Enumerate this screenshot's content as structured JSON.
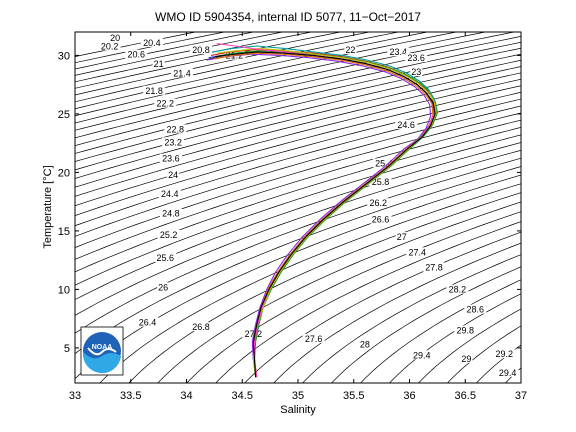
{
  "chart_data": {
    "type": "line",
    "title": "WMO ID 5904354, internal ID 5077, 11−Oct−2017",
    "xlabel": "Salinity",
    "ylabel": "Temperature [°C]",
    "xlim": [
      33,
      37
    ],
    "ylim": [
      2,
      32
    ],
    "xticks": [
      "33",
      "33.5",
      "34",
      "34.5",
      "35",
      "35.5",
      "36",
      "36.5",
      "37"
    ],
    "yticks": [
      "5",
      "10",
      "15",
      "20",
      "25",
      "30"
    ],
    "grid": false,
    "logo_text": "NOAA",
    "density_contours": {
      "start": 20,
      "end": 29.4,
      "step": 0.2,
      "color": "#000000"
    },
    "contour_labels": [
      {
        "text": "20",
        "x": 33.36,
        "y": 31.3
      },
      {
        "text": "20.2",
        "x": 33.31,
        "y": 30.6
      },
      {
        "text": "20.4",
        "x": 33.69,
        "y": 30.9
      },
      {
        "text": "20.6",
        "x": 33.55,
        "y": 29.9
      },
      {
        "text": "20.8",
        "x": 34.13,
        "y": 30.3
      },
      {
        "text": "21",
        "x": 33.75,
        "y": 29.1
      },
      {
        "text": "21.2",
        "x": 34.43,
        "y": 29.8
      },
      {
        "text": "21.4",
        "x": 33.96,
        "y": 28.3
      },
      {
        "text": "21.8",
        "x": 33.71,
        "y": 26.8
      },
      {
        "text": "22.2",
        "x": 33.81,
        "y": 25.7
      },
      {
        "text": "22.8",
        "x": 33.9,
        "y": 23.5
      },
      {
        "text": "23.2",
        "x": 33.88,
        "y": 22.4
      },
      {
        "text": "23.6",
        "x": 33.86,
        "y": 21.0
      },
      {
        "text": "24",
        "x": 33.88,
        "y": 19.6
      },
      {
        "text": "24.4",
        "x": 33.85,
        "y": 18.0
      },
      {
        "text": "24.8",
        "x": 33.86,
        "y": 16.3
      },
      {
        "text": "25.2",
        "x": 33.84,
        "y": 14.5
      },
      {
        "text": "25.6",
        "x": 33.81,
        "y": 12.5
      },
      {
        "text": "26",
        "x": 33.79,
        "y": 10.0
      },
      {
        "text": "26.4",
        "x": 33.65,
        "y": 7.0
      },
      {
        "text": "26.8",
        "x": 34.13,
        "y": 6.6
      },
      {
        "text": "27.2",
        "x": 34.6,
        "y": 6.0
      },
      {
        "text": "27.6",
        "x": 35.14,
        "y": 5.6
      },
      {
        "text": "28",
        "x": 35.6,
        "y": 5.1
      },
      {
        "text": "29.4",
        "x": 36.11,
        "y": 4.2
      },
      {
        "text": "29",
        "x": 36.51,
        "y": 3.9
      },
      {
        "text": "29.2",
        "x": 36.85,
        "y": 4.3
      },
      {
        "text": "29.4",
        "x": 36.88,
        "y": 2.7
      },
      {
        "text": "29.8",
        "x": 36.5,
        "y": 6.3
      },
      {
        "text": "28.6",
        "x": 36.59,
        "y": 8.1
      },
      {
        "text": "28.2",
        "x": 36.43,
        "y": 9.8
      },
      {
        "text": "27.8",
        "x": 36.22,
        "y": 11.7
      },
      {
        "text": "27.4",
        "x": 36.07,
        "y": 13.0
      },
      {
        "text": "27",
        "x": 35.93,
        "y": 14.3
      },
      {
        "text": "26.6",
        "x": 35.74,
        "y": 15.8
      },
      {
        "text": "26.2",
        "x": 35.72,
        "y": 17.2
      },
      {
        "text": "25.8",
        "x": 35.74,
        "y": 19.0
      },
      {
        "text": "25.4",
        "x": 35.77,
        "y": 20.6
      },
      {
        "text": "24.6",
        "x": 35.97,
        "y": 23.9
      },
      {
        "text": "23.4",
        "x": 35.9,
        "y": 30.1
      },
      {
        "text": "23.6",
        "x": 36.06,
        "y": 29.6
      },
      {
        "text": "23",
        "x": 36.06,
        "y": 28.4
      },
      {
        "text": "22",
        "x": 35.47,
        "y": 30.3
      }
    ],
    "series": [
      {
        "color": "#1f3fbf",
        "x": [
          34.62,
          34.6,
          34.6,
          34.63,
          34.67,
          34.73,
          34.82,
          34.93,
          35.06,
          35.22,
          35.4,
          35.6,
          35.8,
          35.97,
          36.1,
          36.18,
          36.22,
          36.2,
          36.15,
          36.07,
          35.95,
          35.8,
          35.6,
          35.38,
          35.12,
          34.85,
          34.6,
          34.38,
          34.2
        ],
        "y": [
          2.5,
          4,
          5.5,
          7,
          8.5,
          10,
          11.5,
          13,
          14.5,
          16,
          17.5,
          19,
          20.5,
          22,
          23,
          24,
          25,
          26,
          26.8,
          27.5,
          28.2,
          28.8,
          29.3,
          29.7,
          30,
          30.2,
          30.3,
          30.1,
          29.8
        ]
      },
      {
        "color": "#d62020",
        "x": [
          34.63,
          34.61,
          34.61,
          34.64,
          34.68,
          34.74,
          34.83,
          34.94,
          35.07,
          35.23,
          35.41,
          35.61,
          35.81,
          35.98,
          36.11,
          36.19,
          36.23,
          36.21,
          36.16,
          36.08,
          35.96,
          35.81,
          35.61,
          35.39,
          35.13,
          34.86,
          34.61,
          34.39,
          34.22
        ],
        "y": [
          2.5,
          4,
          5.5,
          7,
          8.5,
          10,
          11.5,
          13,
          14.5,
          16,
          17.5,
          19,
          20.5,
          22,
          23.2,
          24.2,
          25.2,
          26.2,
          27,
          27.7,
          28.4,
          29,
          29.5,
          29.9,
          30.2,
          30.4,
          30.5,
          30.3,
          30
        ]
      },
      {
        "color": "#1a9a1a",
        "x": [
          34.62,
          34.61,
          34.62,
          34.65,
          34.69,
          34.76,
          34.85,
          34.96,
          35.09,
          35.25,
          35.43,
          35.63,
          35.83,
          36,
          36.13,
          36.21,
          36.25,
          36.23,
          36.18,
          36.1,
          35.98,
          35.83,
          35.64,
          35.42,
          35.16,
          34.9,
          34.66,
          34.44,
          34.26
        ],
        "y": [
          2.5,
          4,
          5.5,
          7,
          8.5,
          10,
          11.5,
          13,
          14.5,
          16,
          17.5,
          19,
          20.5,
          22,
          23.1,
          24.1,
          25.1,
          26.1,
          26.9,
          27.6,
          28.3,
          28.9,
          29.4,
          29.8,
          30.1,
          30.3,
          30.4,
          30.2,
          29.9
        ]
      },
      {
        "color": "#8a2be2",
        "x": [
          34.63,
          34.6,
          34.59,
          34.62,
          34.66,
          34.72,
          34.8,
          34.91,
          35.04,
          35.2,
          35.38,
          35.58,
          35.78,
          35.95,
          36.07,
          36.15,
          36.19,
          36.18,
          36.13,
          36.05,
          35.93,
          35.78,
          35.58,
          35.36,
          35.1,
          34.84,
          34.58,
          34.36,
          34.18
        ],
        "y": [
          2.5,
          4,
          5.5,
          7,
          8.5,
          10,
          11.5,
          13,
          14.5,
          16,
          17.5,
          19,
          20.5,
          22,
          22.8,
          23.8,
          24.8,
          25.8,
          26.6,
          27.3,
          28,
          28.6,
          29.1,
          29.5,
          29.8,
          30,
          30.1,
          29.9,
          29.6
        ]
      },
      {
        "color": "#00a0a0",
        "x": [
          34.62,
          34.61,
          34.61,
          34.64,
          34.68,
          34.75,
          34.84,
          34.95,
          35.08,
          35.24,
          35.42,
          35.62,
          35.82,
          35.99,
          36.12,
          36.2,
          36.24,
          36.22,
          36.17,
          36.09,
          35.97,
          35.82,
          35.62,
          35.4,
          35.14,
          34.88,
          34.63,
          34.41,
          34.24
        ],
        "y": [
          2.5,
          4,
          5.5,
          7,
          8.5,
          10,
          11.5,
          13,
          14.5,
          16,
          17.5,
          19,
          20.5,
          22,
          23.3,
          24.3,
          25.3,
          26.3,
          27.1,
          27.8,
          28.5,
          29.1,
          29.6,
          30,
          30.3,
          30.6,
          30.8,
          30.6,
          30.3
        ]
      },
      {
        "color": "#e07000",
        "x": [
          34.63,
          34.61,
          34.6,
          34.63,
          34.67,
          34.73,
          34.82,
          34.93,
          35.06,
          35.22,
          35.4,
          35.6,
          35.8,
          35.97,
          36.09,
          36.17,
          36.21,
          36.2,
          36.14,
          36.06,
          35.94,
          35.79,
          35.6,
          35.38,
          35.12,
          34.87,
          34.63,
          34.42,
          34.25
        ],
        "y": [
          2.5,
          4,
          5.5,
          7,
          8.5,
          10,
          11.5,
          13,
          14.5,
          16,
          17.5,
          19,
          20.5,
          22,
          22.9,
          23.9,
          24.9,
          25.9,
          26.7,
          27.4,
          28.1,
          28.7,
          29.2,
          29.6,
          29.9,
          30.1,
          30.2,
          30,
          29.7
        ]
      },
      {
        "color": "#c0c000",
        "x": [
          34.62,
          34.6,
          34.61,
          34.64,
          34.69,
          34.75,
          34.84,
          34.95,
          35.08,
          35.24,
          35.42,
          35.62,
          35.82,
          35.99,
          36.12,
          36.2,
          36.24,
          36.22,
          36.16,
          36.08,
          35.96,
          35.81,
          35.62,
          35.4,
          35.15,
          34.9,
          34.66,
          34.45,
          34.28
        ],
        "y": [
          2.5,
          4,
          5.5,
          7,
          8.5,
          10,
          11.5,
          13,
          14.5,
          16,
          17.5,
          19,
          20.5,
          22,
          23.1,
          24.1,
          25.1,
          26.1,
          26.9,
          27.6,
          28.3,
          28.9,
          29.4,
          29.8,
          30.1,
          30.4,
          30.6,
          30.4,
          30.2
        ]
      },
      {
        "color": "#ff40c0",
        "x": [
          34.63,
          34.61,
          34.61,
          34.64,
          34.68,
          34.74,
          34.83,
          34.94,
          35.07,
          35.23,
          35.41,
          35.61,
          35.81,
          35.98,
          36.1,
          36.18,
          36.22,
          36.21,
          36.15,
          36.07,
          35.95,
          35.8,
          35.61,
          35.39,
          35.14,
          34.89,
          34.65,
          34.44,
          34.27
        ],
        "y": [
          2.5,
          4,
          5.5,
          7,
          8.5,
          10,
          11.5,
          13,
          14.5,
          16,
          17.5,
          19,
          20.5,
          22,
          23,
          24,
          25,
          26,
          26.8,
          27.5,
          28.2,
          28.8,
          29.3,
          29.7,
          30,
          30.3,
          30.5,
          30.8,
          31
        ]
      },
      {
        "color": "#000000",
        "x": [
          34.62,
          34.61,
          34.6,
          34.63,
          34.67,
          34.74,
          34.83,
          34.94,
          35.07,
          35.23,
          35.41,
          35.61,
          35.81,
          35.98,
          36.11,
          36.19,
          36.23,
          36.21,
          36.15,
          36.07,
          35.95,
          35.8,
          35.61,
          35.39,
          35.14,
          34.88,
          34.64,
          34.43,
          34.26
        ],
        "y": [
          2.5,
          4,
          5.5,
          7,
          8.5,
          10,
          11.5,
          13,
          14.5,
          16,
          17.5,
          19,
          20.5,
          22,
          23,
          24,
          25,
          26,
          26.8,
          27.5,
          28.2,
          28.8,
          29.3,
          29.7,
          30,
          30.2,
          30.3,
          30.1,
          29.9
        ]
      }
    ]
  }
}
